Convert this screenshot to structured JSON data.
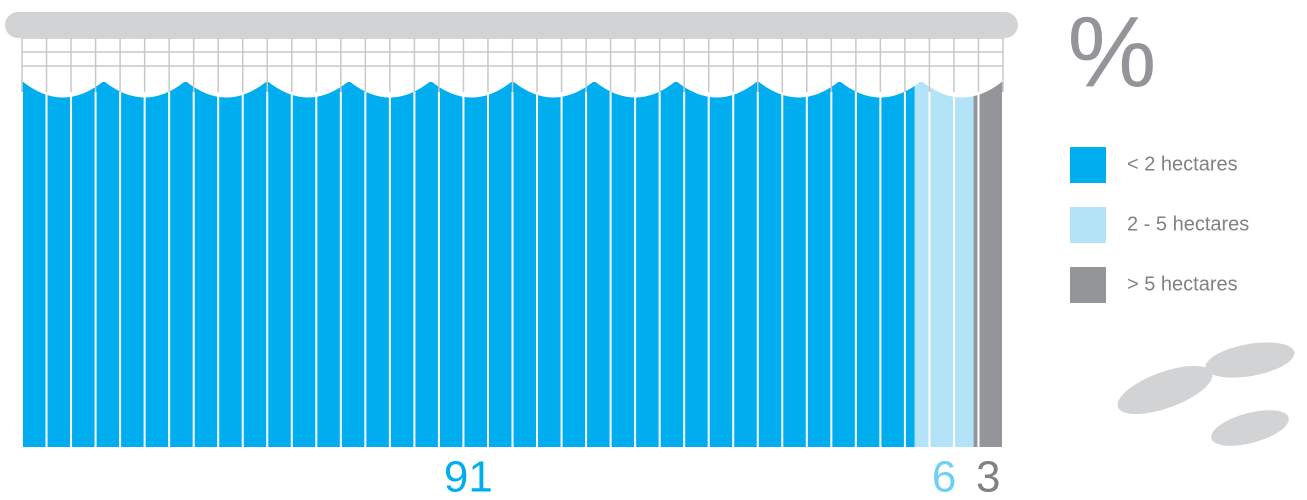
{
  "chart_data": {
    "type": "stacked-bar",
    "title": "%",
    "series": [
      {
        "name": "< 2 hectares",
        "color": "#00aeef",
        "values": [
          91
        ]
      },
      {
        "name": "2 - 5 hectares",
        "color": "#b3e3f7",
        "values": [
          6
        ]
      },
      {
        "name": "> 5 hectares",
        "color": "#939598",
        "values": [
          3
        ]
      }
    ]
  }
}
